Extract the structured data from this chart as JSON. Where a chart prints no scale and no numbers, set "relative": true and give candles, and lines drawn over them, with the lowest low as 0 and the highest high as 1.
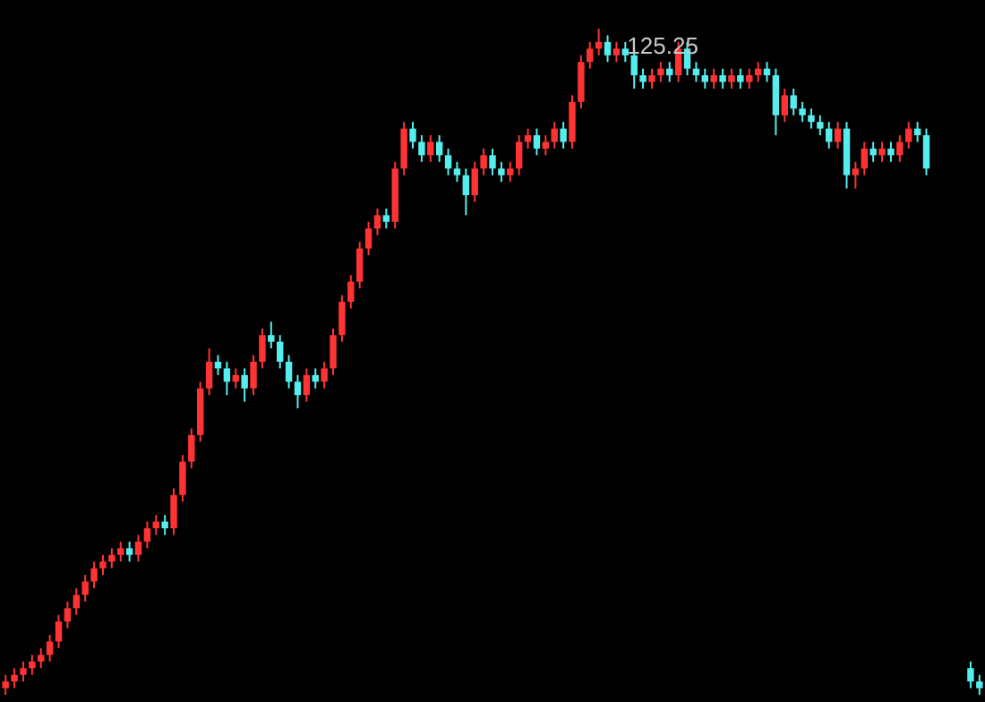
{
  "chart_data": {
    "type": "candlestick",
    "relative": true,
    "categories": [
      null,
      null,
      null,
      null,
      null,
      null,
      null,
      null,
      null,
      null,
      null,
      null,
      null,
      null,
      null,
      null,
      null,
      null,
      null,
      null,
      null,
      null,
      null,
      null,
      null,
      null,
      null,
      null,
      null,
      null,
      null,
      null,
      null,
      null,
      null,
      null,
      null,
      null,
      null,
      null,
      null,
      null,
      null,
      null,
      null,
      null,
      null,
      null,
      null,
      null,
      null,
      null,
      null,
      null,
      null,
      null,
      null,
      null,
      null,
      null,
      null,
      null,
      null,
      null,
      null,
      null,
      null,
      null,
      null,
      null,
      null,
      null,
      null,
      null,
      null,
      null,
      null,
      null,
      null,
      null,
      null,
      null,
      null,
      null,
      null,
      null,
      null,
      null,
      null,
      null,
      null,
      null,
      null,
      null,
      null,
      null,
      null,
      null,
      null,
      null,
      null,
      null,
      null,
      null,
      null,
      null,
      null,
      null,
      null,
      null,
      null
    ],
    "ohlc": [
      [
        0.01,
        0.03,
        0,
        0.02
      ],
      [
        0.02,
        0.04,
        0.01,
        0.03
      ],
      [
        0.03,
        0.05,
        0.02,
        0.04
      ],
      [
        0.04,
        0.06,
        0.03,
        0.05
      ],
      [
        0.05,
        0.07,
        0.04,
        0.06
      ],
      [
        0.06,
        0.09,
        0.05,
        0.08
      ],
      [
        0.08,
        0.12,
        0.07,
        0.11
      ],
      [
        0.11,
        0.14,
        0.1,
        0.13
      ],
      [
        0.13,
        0.16,
        0.12,
        0.15
      ],
      [
        0.15,
        0.18,
        0.14,
        0.17
      ],
      [
        0.17,
        0.2,
        0.16,
        0.19
      ],
      [
        0.19,
        0.21,
        0.18,
        0.2
      ],
      [
        0.2,
        0.22,
        0.19,
        0.21
      ],
      [
        0.21,
        0.23,
        0.2,
        0.22
      ],
      [
        0.22,
        0.23,
        0.2,
        0.21
      ],
      [
        0.21,
        0.24,
        0.2,
        0.23
      ],
      [
        0.23,
        0.26,
        0.22,
        0.25
      ],
      [
        0.25,
        0.27,
        0.24,
        0.26
      ],
      [
        0.26,
        0.27,
        0.24,
        0.25
      ],
      [
        0.25,
        0.31,
        0.24,
        0.3
      ],
      [
        0.3,
        0.36,
        0.29,
        0.35
      ],
      [
        0.35,
        0.4,
        0.34,
        0.39
      ],
      [
        0.39,
        0.47,
        0.38,
        0.46
      ],
      [
        0.46,
        0.52,
        0.45,
        0.5
      ],
      [
        0.5,
        0.51,
        0.48,
        0.49
      ],
      [
        0.49,
        0.5,
        0.45,
        0.47
      ],
      [
        0.47,
        0.49,
        0.46,
        0.48
      ],
      [
        0.48,
        0.49,
        0.44,
        0.46
      ],
      [
        0.46,
        0.51,
        0.45,
        0.5
      ],
      [
        0.5,
        0.55,
        0.49,
        0.54
      ],
      [
        0.54,
        0.56,
        0.52,
        0.53
      ],
      [
        0.53,
        0.54,
        0.49,
        0.5
      ],
      [
        0.5,
        0.51,
        0.46,
        0.47
      ],
      [
        0.47,
        0.48,
        0.43,
        0.45
      ],
      [
        0.45,
        0.49,
        0.44,
        0.48
      ],
      [
        0.48,
        0.49,
        0.46,
        0.47
      ],
      [
        0.47,
        0.5,
        0.46,
        0.49
      ],
      [
        0.49,
        0.55,
        0.48,
        0.54
      ],
      [
        0.54,
        0.6,
        0.53,
        0.59
      ],
      [
        0.59,
        0.63,
        0.58,
        0.62
      ],
      [
        0.62,
        0.68,
        0.61,
        0.67
      ],
      [
        0.67,
        0.71,
        0.66,
        0.7
      ],
      [
        0.7,
        0.73,
        0.69,
        0.72
      ],
      [
        0.72,
        0.73,
        0.7,
        0.71
      ],
      [
        0.71,
        0.8,
        0.7,
        0.79
      ],
      [
        0.79,
        0.86,
        0.78,
        0.85
      ],
      [
        0.85,
        0.86,
        0.82,
        0.83
      ],
      [
        0.83,
        0.84,
        0.8,
        0.81
      ],
      [
        0.81,
        0.84,
        0.8,
        0.83
      ],
      [
        0.83,
        0.84,
        0.8,
        0.81
      ],
      [
        0.81,
        0.82,
        0.78,
        0.79
      ],
      [
        0.79,
        0.8,
        0.77,
        0.78
      ],
      [
        0.78,
        0.79,
        0.72,
        0.75
      ],
      [
        0.75,
        0.8,
        0.74,
        0.79
      ],
      [
        0.79,
        0.82,
        0.78,
        0.81
      ],
      [
        0.81,
        0.82,
        0.78,
        0.79
      ],
      [
        0.79,
        0.8,
        0.77,
        0.78
      ],
      [
        0.78,
        0.8,
        0.77,
        0.79
      ],
      [
        0.79,
        0.84,
        0.78,
        0.83
      ],
      [
        0.83,
        0.85,
        0.82,
        0.84
      ],
      [
        0.84,
        0.85,
        0.81,
        0.82
      ],
      [
        0.82,
        0.84,
        0.81,
        0.83
      ],
      [
        0.83,
        0.86,
        0.82,
        0.85
      ],
      [
        0.85,
        0.86,
        0.82,
        0.83
      ],
      [
        0.83,
        0.9,
        0.82,
        0.89
      ],
      [
        0.89,
        0.96,
        0.88,
        0.95
      ],
      [
        0.95,
        0.98,
        0.94,
        0.97
      ],
      [
        0.97,
        1,
        0.96,
        0.98
      ],
      [
        0.98,
        0.99,
        0.95,
        0.96
      ],
      [
        0.96,
        0.98,
        0.95,
        0.97
      ],
      [
        0.97,
        0.98,
        0.95,
        0.96
      ],
      [
        0.96,
        0.97,
        0.91,
        0.93
      ],
      [
        0.93,
        0.94,
        0.91,
        0.92
      ],
      [
        0.92,
        0.94,
        0.91,
        0.93
      ],
      [
        0.93,
        0.95,
        0.92,
        0.94
      ],
      [
        0.94,
        0.95,
        0.92,
        0.93
      ],
      [
        0.93,
        0.98,
        0.92,
        0.97
      ],
      [
        0.97,
        0.98,
        0.93,
        0.94
      ],
      [
        0.94,
        0.95,
        0.92,
        0.93
      ],
      [
        0.93,
        0.94,
        0.91,
        0.92
      ],
      [
        0.92,
        0.94,
        0.91,
        0.93
      ],
      [
        0.93,
        0.94,
        0.91,
        0.92
      ],
      [
        0.92,
        0.94,
        0.91,
        0.93
      ],
      [
        0.93,
        0.94,
        0.91,
        0.92
      ],
      [
        0.92,
        0.94,
        0.91,
        0.93
      ],
      [
        0.93,
        0.95,
        0.92,
        0.94
      ],
      [
        0.94,
        0.95,
        0.92,
        0.93
      ],
      [
        0.93,
        0.94,
        0.84,
        0.87
      ],
      [
        0.87,
        0.91,
        0.86,
        0.9
      ],
      [
        0.9,
        0.91,
        0.87,
        0.88
      ],
      [
        0.88,
        0.89,
        0.86,
        0.87
      ],
      [
        0.87,
        0.88,
        0.85,
        0.86
      ],
      [
        0.86,
        0.87,
        0.84,
        0.85
      ],
      [
        0.85,
        0.86,
        0.82,
        0.83
      ],
      [
        0.83,
        0.86,
        0.82,
        0.85
      ],
      [
        0.85,
        0.86,
        0.76,
        0.78
      ],
      [
        0.78,
        0.8,
        0.76,
        0.79
      ],
      [
        0.79,
        0.83,
        0.78,
        0.82
      ],
      [
        0.82,
        0.83,
        0.8,
        0.81
      ],
      [
        0.81,
        0.83,
        0.8,
        0.82
      ],
      [
        0.82,
        0.83,
        0.8,
        0.81
      ],
      [
        0.81,
        0.84,
        0.8,
        0.83
      ],
      [
        0.83,
        0.86,
        0.82,
        0.85
      ],
      [
        0.85,
        0.86,
        0.83,
        0.84
      ],
      [
        0.84,
        0.85,
        0.78,
        0.79
      ],
      null,
      null,
      null,
      null,
      [
        0.04,
        0.05,
        0.01,
        0.02
      ],
      [
        0.02,
        0.03,
        0,
        0.01
      ]
    ],
    "colors": [
      "#ff3333",
      "#ff3333",
      "#ff3333",
      "#ff3333",
      "#ff3333",
      "#ff3333",
      "#ff3333",
      "#ff3333",
      "#ff3333",
      "#ff3333",
      "#ff3333",
      "#ff3333",
      "#ff3333",
      "#ff3333",
      "#55eeee",
      "#ff3333",
      "#ff3333",
      "#ff3333",
      "#55eeee",
      "#ff3333",
      "#ff3333",
      "#ff3333",
      "#ff3333",
      "#ff3333",
      "#55eeee",
      "#55eeee",
      "#ff3333",
      "#55eeee",
      "#ff3333",
      "#ff3333",
      "#55eeee",
      "#55eeee",
      "#55eeee",
      "#55eeee",
      "#ff3333",
      "#55eeee",
      "#ff3333",
      "#ff3333",
      "#ff3333",
      "#ff3333",
      "#ff3333",
      "#ff3333",
      "#ff3333",
      "#55eeee",
      "#ff3333",
      "#ff3333",
      "#55eeee",
      "#55eeee",
      "#ff3333",
      "#55eeee",
      "#55eeee",
      "#55eeee",
      "#55eeee",
      "#ff3333",
      "#ff3333",
      "#55eeee",
      "#55eeee",
      "#ff3333",
      "#ff3333",
      "#ff3333",
      "#55eeee",
      "#ff3333",
      "#ff3333",
      "#55eeee",
      "#ff3333",
      "#ff3333",
      "#ff3333",
      "#ff3333",
      "#55eeee",
      "#ff3333",
      "#55eeee",
      "#55eeee",
      "#55eeee",
      "#ff3333",
      "#ff3333",
      "#55eeee",
      "#ff3333",
      "#55eeee",
      "#55eeee",
      "#55eeee",
      "#ff3333",
      "#55eeee",
      "#ff3333",
      "#55eeee",
      "#ff3333",
      "#ff3333",
      "#55eeee",
      "#55eeee",
      "#ff3333",
      "#55eeee",
      "#55eeee",
      "#55eeee",
      "#55eeee",
      "#55eeee",
      "#ff3333",
      "#55eeee",
      "#ff3333",
      "#ff3333",
      "#55eeee",
      "#ff3333",
      "#55eeee",
      "#ff3333",
      "#ff3333",
      "#55eeee",
      "#55eeee",
      null,
      null,
      null,
      null,
      "#55eeee",
      "#55eeee"
    ],
    "annotations": [
      "125.25"
    ]
  }
}
